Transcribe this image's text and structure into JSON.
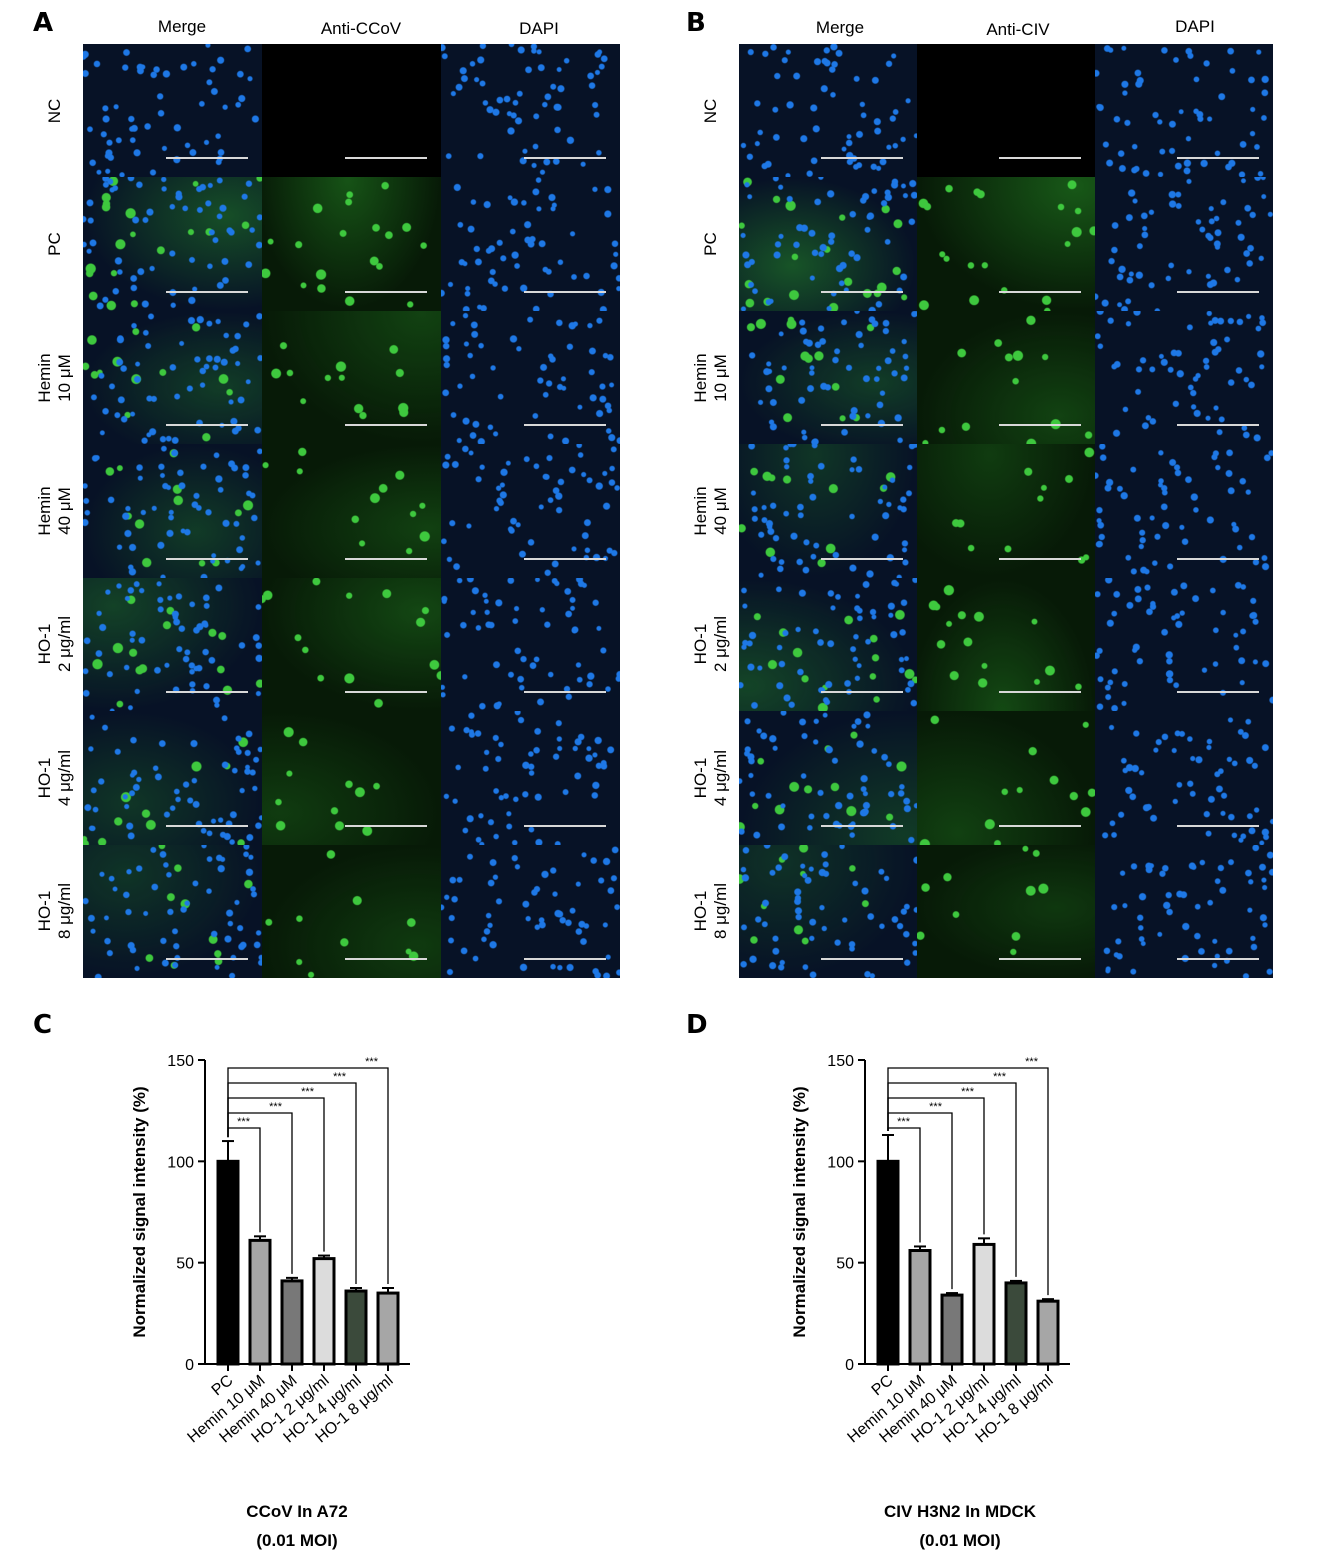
{
  "panels": {
    "A": {
      "letter": "A",
      "columns": [
        "Merge",
        "Anti-CCoV",
        "DAPI"
      ],
      "rows": [
        [
          "NC"
        ],
        [
          "PC"
        ],
        [
          "Hemin",
          "10 μM"
        ],
        [
          "Hemin",
          "40 μM"
        ],
        [
          "HO-1",
          "2 μg/ml"
        ],
        [
          "HO-1",
          "4 μg/ml"
        ],
        [
          "HO-1",
          "8 μg/ml"
        ]
      ],
      "green_intensity": [
        0,
        0.9,
        0.5,
        0.45,
        0.6,
        0.35,
        0.3
      ]
    },
    "B": {
      "letter": "B",
      "columns": [
        "Merge",
        "Anti-CIV",
        "DAPI"
      ],
      "rows": [
        [
          "NC"
        ],
        [
          "PC"
        ],
        [
          "Hemin",
          "10 μM"
        ],
        [
          "Hemin",
          "40 μM"
        ],
        [
          "HO-1",
          "2 μg/ml"
        ],
        [
          "HO-1",
          "4 μg/ml"
        ],
        [
          "HO-1",
          "8 μg/ml"
        ]
      ],
      "green_intensity": [
        0,
        1.0,
        0.5,
        0.35,
        0.65,
        0.45,
        0.25
      ]
    },
    "C": {
      "letter": "C"
    },
    "D": {
      "letter": "D"
    }
  },
  "chart_data": [
    {
      "type": "bar",
      "panel": "C",
      "categories": [
        "PC",
        "Hemin 10 μM",
        "Hemin 40 μM",
        "HO-1 2 μg/ml",
        "HO-1 4 μg/ml",
        "HO-1 8 μg/ml"
      ],
      "values": [
        100,
        61,
        41,
        52,
        36,
        35
      ],
      "errors": [
        10,
        2,
        1.5,
        1.5,
        1.5,
        2.5
      ],
      "bar_colors": [
        "#000000",
        "#a6a6a6",
        "#787878",
        "#dcdcdc",
        "#3b4a3b",
        "#a6a6a6"
      ],
      "ylabel": "Normalized signal intensity (%)",
      "yticks": [
        0,
        50,
        100,
        150
      ],
      "ylim": [
        0,
        150
      ],
      "significance": [
        "***",
        "***",
        "***",
        "***",
        "***"
      ],
      "caption": [
        "CCoV In A72",
        "(0.01 MOI)"
      ]
    },
    {
      "type": "bar",
      "panel": "D",
      "categories": [
        "PC",
        "Hemin 10 μM",
        "Hemin 40 μM",
        "HO-1 2 μg/ml",
        "HO-1 4 μg/ml",
        "HO-1 8 μg/ml"
      ],
      "values": [
        100,
        56,
        34,
        59,
        40,
        31
      ],
      "errors": [
        13,
        2,
        1,
        3,
        1,
        1
      ],
      "bar_colors": [
        "#000000",
        "#a6a6a6",
        "#787878",
        "#dcdcdc",
        "#3b4a3b",
        "#a6a6a6"
      ],
      "ylabel": "Normalized signal intensity (%)",
      "yticks": [
        0,
        50,
        100,
        150
      ],
      "ylim": [
        0,
        150
      ],
      "significance": [
        "***",
        "***",
        "***",
        "***",
        "***"
      ],
      "caption": [
        "CIV H3N2 In MDCK",
        "(0.01 MOI)"
      ]
    }
  ]
}
